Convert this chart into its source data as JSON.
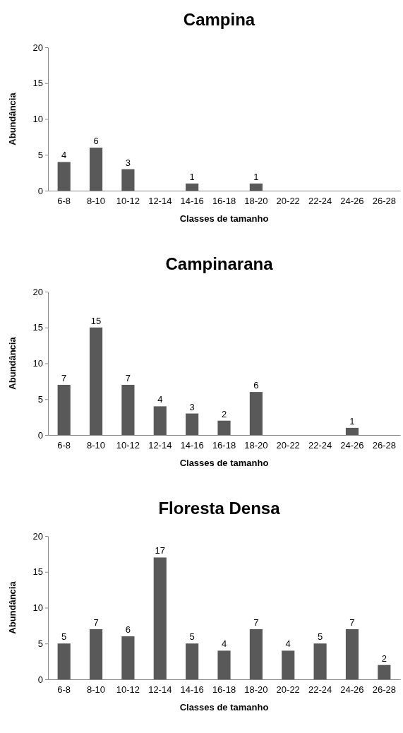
{
  "chart_data": [
    {
      "type": "bar",
      "title": "Campina",
      "xlabel": "Classes de tamanho",
      "ylabel": "Abundância",
      "categories": [
        "6-8",
        "8-10",
        "10-12",
        "12-14",
        "14-16",
        "16-18",
        "18-20",
        "20-22",
        "22-24",
        "24-26",
        "26-28"
      ],
      "values": [
        4,
        6,
        3,
        0,
        1,
        0,
        1,
        0,
        0,
        0,
        0
      ],
      "value_labels": [
        "4",
        "6",
        "3",
        null,
        "1",
        null,
        "1",
        null,
        null,
        null,
        null
      ],
      "color": "#595959",
      "ylim": [
        0,
        20
      ],
      "yticks": [
        0,
        5,
        10,
        15,
        20
      ]
    },
    {
      "type": "bar",
      "title": "Campinarana",
      "xlabel": "Classes de tamanho",
      "ylabel": "Abundância",
      "categories": [
        "6-8",
        "8-10",
        "10-12",
        "12-14",
        "14-16",
        "16-18",
        "18-20",
        "20-22",
        "22-24",
        "24-26",
        "26-28"
      ],
      "values": [
        7,
        15,
        7,
        4,
        3,
        2,
        6,
        0,
        0,
        1,
        0
      ],
      "value_labels": [
        "7",
        "15",
        "7",
        "4",
        "3",
        "2",
        "6",
        null,
        null,
        "1",
        null
      ],
      "color": "#595959",
      "ylim": [
        0,
        20
      ],
      "yticks": [
        0,
        5,
        10,
        15,
        20
      ]
    },
    {
      "type": "bar",
      "title": "Floresta Densa",
      "xlabel": "Classes de tamanho",
      "ylabel": "Abundância",
      "categories": [
        "6-8",
        "8-10",
        "10-12",
        "12-14",
        "14-16",
        "16-18",
        "18-20",
        "20-22",
        "22-24",
        "24-26",
        "26-28"
      ],
      "values": [
        5,
        7,
        6,
        17,
        5,
        4,
        7,
        4,
        5,
        7,
        2
      ],
      "data_labels": true,
      "color": "#595959",
      "ylim": [
        0,
        20
      ],
      "yticks": [
        0,
        5,
        10,
        15,
        20
      ]
    }
  ]
}
